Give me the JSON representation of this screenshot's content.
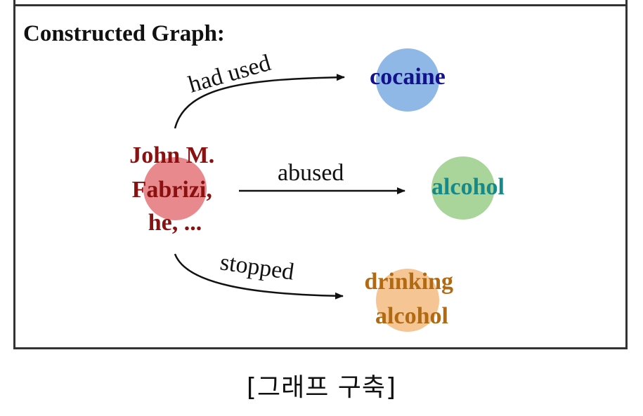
{
  "heading": "Constructed Graph:",
  "caption": "[그래프 구축]",
  "colors": {
    "subject_circle": "#e8898d",
    "subject_text": "#8b1010",
    "cocaine_circle": "#8fb8e6",
    "cocaine_text": "#12128c",
    "alcohol_circle": "#a9d49a",
    "alcohol_text": "#168a8a",
    "drinking_circle": "#f6c594",
    "drinking_text": "#b26a12",
    "frame": "#333333"
  },
  "nodes": {
    "subject": {
      "lines": [
        "John M.",
        "Fabrizi,",
        "he, ..."
      ]
    },
    "cocaine": {
      "lines": [
        "cocaine"
      ]
    },
    "alcohol": {
      "lines": [
        "alcohol"
      ]
    },
    "drinking_alcohol": {
      "lines": [
        "drinking",
        "alcohol"
      ]
    }
  },
  "edges": {
    "had_used": "had used",
    "abused": "abused",
    "stopped": "stopped"
  }
}
